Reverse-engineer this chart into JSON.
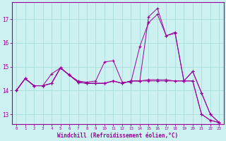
{
  "xlabel": "Windchill (Refroidissement éolien,°C)",
  "background_color": "#cdf0f0",
  "grid_color": "#aadddd",
  "line_color": "#990099",
  "xlim": [
    -0.5,
    23.5
  ],
  "ylim": [
    12.6,
    17.7
  ],
  "yticks": [
    13,
    14,
    15,
    16,
    17
  ],
  "xticks": [
    0,
    1,
    2,
    3,
    4,
    5,
    6,
    7,
    8,
    9,
    10,
    11,
    12,
    13,
    14,
    15,
    16,
    17,
    18,
    19,
    20,
    21,
    22,
    23
  ],
  "series": [
    [
      14.0,
      14.5,
      14.2,
      14.2,
      14.3,
      14.95,
      14.65,
      14.35,
      14.3,
      14.3,
      14.3,
      14.4,
      14.3,
      14.4,
      14.4,
      14.45,
      14.45,
      14.45,
      14.4,
      14.4,
      14.4,
      13.0,
      12.75,
      12.65
    ],
    [
      14.0,
      14.5,
      14.2,
      14.2,
      14.7,
      14.95,
      14.65,
      14.4,
      14.35,
      14.4,
      15.2,
      15.25,
      14.35,
      14.35,
      15.85,
      16.85,
      17.2,
      16.3,
      16.45,
      14.4,
      14.8,
      13.9,
      13.0,
      12.65
    ],
    [
      14.0,
      14.5,
      14.2,
      14.2,
      14.3,
      14.95,
      14.65,
      14.35,
      14.3,
      14.3,
      14.3,
      14.4,
      14.3,
      14.4,
      14.4,
      14.4,
      14.4,
      14.4,
      14.4,
      14.4,
      14.4,
      13.0,
      12.75,
      12.65
    ],
    [
      14.0,
      14.5,
      14.2,
      14.2,
      14.3,
      14.95,
      14.65,
      14.35,
      14.3,
      14.3,
      14.3,
      14.4,
      14.3,
      14.4,
      14.4,
      17.1,
      17.45,
      16.3,
      16.4,
      14.4,
      14.8,
      13.9,
      13.0,
      12.65
    ]
  ]
}
